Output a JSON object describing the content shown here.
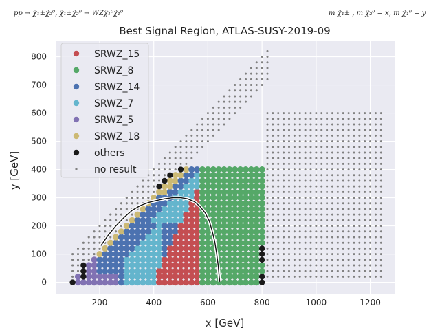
{
  "chart_data": {
    "type": "scatter",
    "title": "Best Signal Region, ATLAS-SUSY-2019-09",
    "process_label": "pp → χ̃₁±χ̃₂⁰, χ̃₁±χ̃₂⁰ → WZχ̃₁⁰χ̃₁⁰",
    "mass_label": "m χ̃₁± , m χ̃₂⁰ = x, m χ̃₁⁰ = y",
    "xlabel": "x [GeV]",
    "ylabel": "y [GeV]",
    "xlim": [
      40,
      1290
    ],
    "ylim": [
      -40,
      855
    ],
    "xticks": [
      200,
      400,
      600,
      800,
      1000,
      1200
    ],
    "yticks": [
      0,
      100,
      200,
      300,
      400,
      500,
      600,
      700,
      800
    ],
    "grid": true,
    "legend_position": "top-left",
    "series": [
      {
        "name": "SRWZ_15",
        "color": "#c44e52"
      },
      {
        "name": "SRWZ_8",
        "color": "#55a868"
      },
      {
        "name": "SRWZ_14",
        "color": "#4c72b0"
      },
      {
        "name": "SRWZ_7",
        "color": "#64b5cd"
      },
      {
        "name": "SRWZ_5",
        "color": "#8172b3"
      },
      {
        "name": "SRWZ_18",
        "color": "#ccb974"
      },
      {
        "name": "others",
        "color": "#1a1a1a"
      },
      {
        "name": "no result",
        "color": "#808080"
      }
    ],
    "others_points": [
      [
        100,
        0
      ],
      [
        140,
        20
      ],
      [
        140,
        40
      ],
      [
        140,
        60
      ],
      [
        420,
        340
      ],
      [
        440,
        360
      ],
      [
        460,
        380
      ],
      [
        500,
        400
      ],
      [
        800,
        0
      ],
      [
        800,
        20
      ],
      [
        800,
        80
      ],
      [
        800,
        100
      ],
      [
        800,
        120
      ]
    ],
    "exclusion_curve": [
      [
        205,
        130
      ],
      [
        230,
        165
      ],
      [
        260,
        200
      ],
      [
        290,
        230
      ],
      [
        320,
        255
      ],
      [
        350,
        272
      ],
      [
        380,
        283
      ],
      [
        410,
        290
      ],
      [
        440,
        296
      ],
      [
        470,
        300
      ],
      [
        500,
        300
      ],
      [
        525,
        296
      ],
      [
        550,
        286
      ],
      [
        570,
        270
      ],
      [
        590,
        246
      ],
      [
        605,
        218
      ],
      [
        615,
        185
      ],
      [
        625,
        145
      ],
      [
        632,
        105
      ],
      [
        638,
        60
      ],
      [
        642,
        20
      ],
      [
        644,
        2
      ]
    ]
  }
}
